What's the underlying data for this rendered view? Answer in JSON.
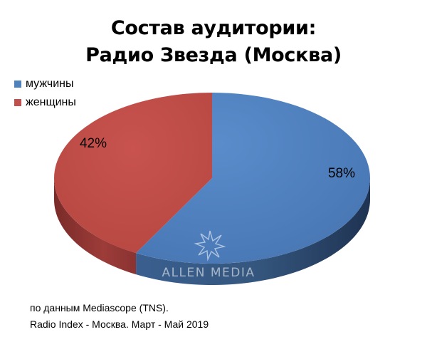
{
  "chart_data": {
    "type": "pie",
    "title_lines": [
      "Состав аудитории:",
      "Радио Звезда (Москва)"
    ],
    "categories": [
      "мужчины",
      "женщины"
    ],
    "values": [
      58,
      42
    ],
    "value_labels": [
      "58%",
      "42%"
    ],
    "colors": [
      "#4f81bd",
      "#c0504d"
    ],
    "legend_placement": "top-left",
    "style": "3d"
  },
  "watermark": {
    "text": "ALLEN MEDIA",
    "icon": "star-burst-icon"
  },
  "source_lines": [
    "по данным Mediascope (TNS).",
    "Radio Index - Москва. Март - Май 2019"
  ]
}
